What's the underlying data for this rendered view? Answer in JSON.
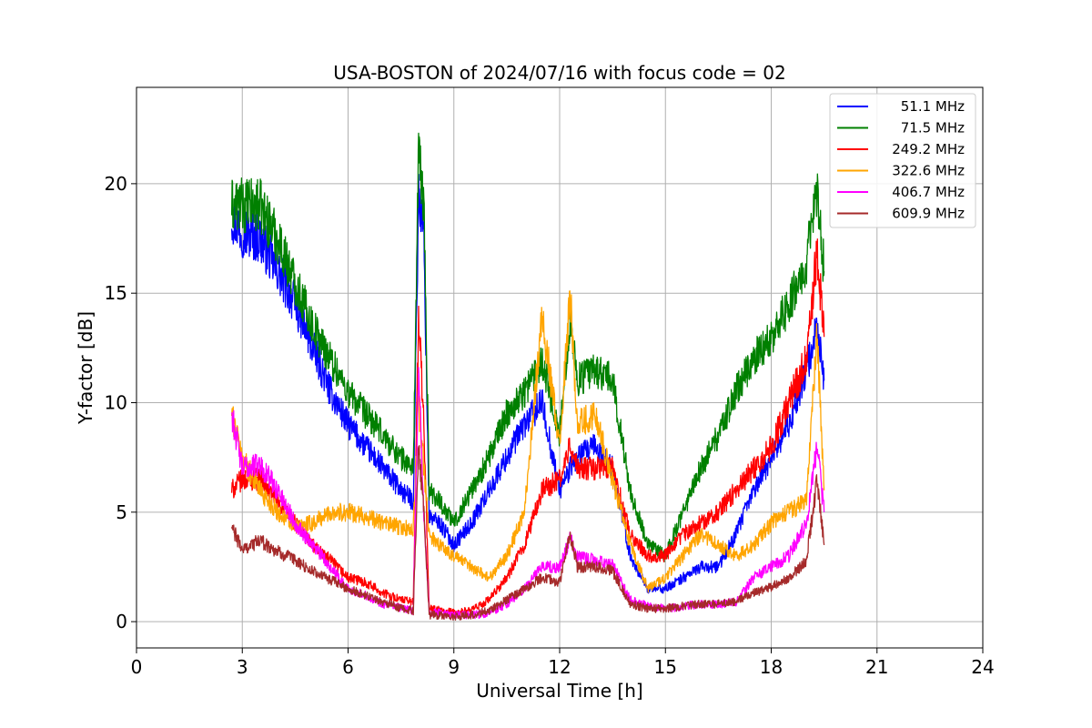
{
  "chart_data": {
    "type": "line",
    "title": "USA-BOSTON of 2024/07/16 with focus code = 02",
    "xlabel": "Universal Time [h]",
    "ylabel": "Y-factor [dB]",
    "xlim": [
      0,
      24
    ],
    "ylim": [
      -1.2,
      24.4
    ],
    "xticks": [
      0,
      3,
      6,
      9,
      12,
      15,
      18,
      21,
      24
    ],
    "yticks": [
      0,
      5,
      10,
      15,
      20
    ],
    "grid": true,
    "legend_position": "top-right",
    "series": [
      {
        "name": "51.1 MHz",
        "color": "#0000ff",
        "x": [
          2.7,
          3.0,
          3.5,
          4.0,
          4.5,
          5.0,
          5.5,
          6.0,
          6.5,
          7.0,
          7.5,
          7.85,
          8.0,
          8.15,
          8.3,
          8.6,
          9.0,
          9.5,
          10.0,
          10.5,
          11.0,
          11.5,
          12.0,
          12.3,
          12.5,
          13.0,
          13.5,
          14.0,
          14.5,
          15.0,
          15.5,
          16.0,
          16.5,
          17.0,
          17.5,
          18.0,
          18.5,
          19.0,
          19.3,
          19.5
        ],
        "y": [
          18.5,
          17.8,
          17.5,
          16.0,
          14.5,
          12.5,
          10.5,
          9.0,
          8.0,
          7.0,
          6.0,
          5.5,
          19.5,
          17.5,
          4.8,
          4.5,
          3.5,
          4.5,
          6.0,
          7.5,
          9.0,
          10.0,
          6.0,
          7.0,
          7.5,
          8.0,
          7.0,
          3.0,
          1.5,
          1.5,
          2.0,
          2.5,
          2.5,
          4.0,
          6.0,
          7.5,
          9.0,
          11.5,
          13.5,
          11.0
        ]
      },
      {
        "name": "71.5 MHz",
        "color": "#008000",
        "x": [
          2.7,
          3.0,
          3.5,
          4.0,
          4.5,
          5.0,
          5.5,
          6.0,
          6.5,
          7.0,
          7.5,
          7.85,
          8.0,
          8.15,
          8.3,
          8.6,
          9.0,
          9.5,
          10.0,
          10.5,
          11.0,
          11.5,
          12.0,
          12.3,
          12.5,
          13.0,
          13.5,
          14.0,
          14.5,
          15.0,
          15.5,
          16.0,
          16.5,
          17.0,
          17.5,
          18.0,
          18.5,
          19.0,
          19.3,
          19.5
        ],
        "y": [
          19.0,
          19.0,
          19.0,
          17.5,
          15.5,
          13.5,
          12.0,
          10.5,
          9.5,
          8.5,
          7.5,
          7.0,
          21.5,
          19.0,
          6.0,
          5.5,
          4.5,
          6.0,
          7.5,
          9.5,
          10.5,
          12.0,
          8.5,
          14.0,
          11.0,
          11.5,
          11.0,
          6.0,
          3.5,
          3.0,
          5.0,
          7.0,
          8.5,
          10.5,
          12.0,
          13.0,
          14.5,
          16.5,
          19.5,
          16.0
        ]
      },
      {
        "name": "249.2 MHz",
        "color": "#ff0000",
        "x": [
          2.7,
          3.0,
          3.5,
          4.0,
          4.5,
          5.0,
          5.5,
          6.0,
          6.5,
          7.0,
          7.5,
          7.85,
          8.0,
          8.15,
          8.3,
          8.6,
          9.0,
          9.5,
          10.0,
          10.5,
          11.0,
          11.5,
          12.0,
          12.3,
          12.5,
          13.0,
          13.5,
          14.0,
          14.5,
          15.0,
          15.5,
          16.0,
          16.5,
          17.0,
          17.5,
          18.0,
          18.5,
          19.0,
          19.3,
          19.5
        ],
        "y": [
          6.0,
          6.5,
          6.5,
          5.5,
          4.5,
          3.5,
          2.8,
          2.0,
          1.8,
          1.3,
          1.0,
          0.9,
          14.0,
          9.0,
          0.6,
          0.5,
          0.4,
          0.5,
          1.0,
          2.0,
          3.5,
          6.0,
          6.5,
          8.0,
          7.0,
          7.0,
          7.0,
          4.0,
          3.0,
          3.0,
          4.0,
          4.5,
          5.0,
          6.0,
          7.0,
          8.0,
          10.0,
          12.0,
          17.0,
          13.0
        ]
      },
      {
        "name": "322.6 MHz",
        "color": "#ffa500",
        "x": [
          2.7,
          3.0,
          3.5,
          4.0,
          4.5,
          5.0,
          5.5,
          6.0,
          6.5,
          7.0,
          7.5,
          7.85,
          8.0,
          8.15,
          8.3,
          8.6,
          9.0,
          9.5,
          10.0,
          10.5,
          11.0,
          11.5,
          12.0,
          12.3,
          12.5,
          13.0,
          13.5,
          14.0,
          14.5,
          15.0,
          15.5,
          16.0,
          16.5,
          17.0,
          17.5,
          18.0,
          18.5,
          19.0,
          19.3,
          19.5
        ],
        "y": [
          9.5,
          7.5,
          6.0,
          5.0,
          4.3,
          4.5,
          5.0,
          5.0,
          4.8,
          4.5,
          4.3,
          4.2,
          10.0,
          7.0,
          4.0,
          3.5,
          3.0,
          2.5,
          2.0,
          3.0,
          5.0,
          14.0,
          8.0,
          15.0,
          9.0,
          9.5,
          6.5,
          3.5,
          1.5,
          2.0,
          3.0,
          4.0,
          3.5,
          3.0,
          3.5,
          4.5,
          5.0,
          5.5,
          13.0,
          6.0
        ]
      },
      {
        "name": "406.7 MHz",
        "color": "#ff00ff",
        "x": [
          2.7,
          3.0,
          3.5,
          4.0,
          4.5,
          5.0,
          5.5,
          6.0,
          6.5,
          7.0,
          7.5,
          7.85,
          8.0,
          8.15,
          8.3,
          8.6,
          9.0,
          9.5,
          10.0,
          10.5,
          11.0,
          11.5,
          12.0,
          12.3,
          12.5,
          13.0,
          13.5,
          14.0,
          14.5,
          15.0,
          15.5,
          16.0,
          16.5,
          17.0,
          17.5,
          18.0,
          18.5,
          19.0,
          19.3,
          19.5
        ],
        "y": [
          9.5,
          7.0,
          7.2,
          6.0,
          4.5,
          3.5,
          2.5,
          1.5,
          1.2,
          0.8,
          0.6,
          0.5,
          11.5,
          5.0,
          0.4,
          0.4,
          0.3,
          0.3,
          0.4,
          0.8,
          1.5,
          2.5,
          2.5,
          3.8,
          3.0,
          2.8,
          2.6,
          1.0,
          0.7,
          0.6,
          0.7,
          0.8,
          0.8,
          0.9,
          2.0,
          2.5,
          3.0,
          4.5,
          8.0,
          5.0
        ]
      },
      {
        "name": "609.9 MHz",
        "color": "#a52a2a",
        "x": [
          2.7,
          3.0,
          3.5,
          4.0,
          4.5,
          5.0,
          5.5,
          6.0,
          6.5,
          7.0,
          7.5,
          7.85,
          8.0,
          8.15,
          8.3,
          8.6,
          9.0,
          9.5,
          10.0,
          10.5,
          11.0,
          11.5,
          12.0,
          12.3,
          12.5,
          13.0,
          13.5,
          14.0,
          14.5,
          15.0,
          15.5,
          16.0,
          16.5,
          17.0,
          17.5,
          18.0,
          18.5,
          19.0,
          19.3,
          19.5
        ],
        "y": [
          4.3,
          3.3,
          3.7,
          3.2,
          2.8,
          2.3,
          1.9,
          1.5,
          1.2,
          0.9,
          0.6,
          0.5,
          8.0,
          5.0,
          0.3,
          0.3,
          0.2,
          0.3,
          0.5,
          1.0,
          1.5,
          2.0,
          1.8,
          4.0,
          2.5,
          2.5,
          2.3,
          0.8,
          0.6,
          0.6,
          0.7,
          0.8,
          0.8,
          0.9,
          1.3,
          1.6,
          2.0,
          2.8,
          6.5,
          3.5
        ]
      }
    ]
  }
}
